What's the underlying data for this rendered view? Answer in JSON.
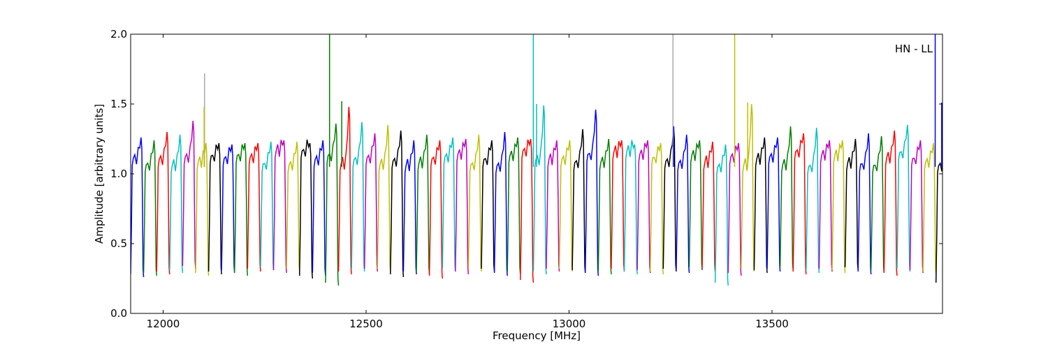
{
  "chart_data": {
    "type": "line",
    "title": "",
    "xlabel": "Frequency [MHz]",
    "ylabel": "Amplitude [arbitrary units]",
    "xlim": [
      11920,
      13920
    ],
    "ylim": [
      0.0,
      2.0
    ],
    "xticks": [
      12000,
      12500,
      13000,
      13500
    ],
    "yticks": [
      0.0,
      0.5,
      1.0,
      1.5,
      2.0
    ],
    "ytick_labels": [
      "0.0",
      "0.5",
      "1.0",
      "1.5",
      "2.0"
    ],
    "grid": false,
    "legend": "none",
    "annotation": "HN - LL",
    "channel": {
      "width": 32,
      "start": 11920,
      "count": 63
    },
    "colors": [
      "#0000ff",
      "#007f00",
      "#ff0000",
      "#00bfbf",
      "#bf00bf",
      "#bfbf00",
      "#000000"
    ],
    "peaks": [
      1.26,
      1.24,
      1.3,
      1.28,
      1.38,
      1.22,
      1.22,
      1.21,
      1.22,
      1.22,
      1.23,
      1.24,
      1.23,
      1.22,
      1.24,
      1.36,
      1.48,
      1.37,
      1.29,
      1.35,
      1.31,
      1.24,
      1.28,
      1.24,
      1.26,
      1.25,
      1.28,
      1.24,
      1.3,
      1.26,
      1.25,
      1.49,
      1.24,
      1.24,
      1.32,
      1.46,
      1.25,
      1.24,
      1.21,
      1.24,
      1.22,
      1.33,
      1.28,
      1.24,
      1.23,
      1.21,
      1.22,
      1.5,
      1.26,
      1.26,
      1.34,
      1.29,
      1.33,
      1.24,
      1.24,
      1.25,
      1.29,
      1.27,
      1.31,
      1.35,
      1.24,
      1.22,
      1.5
    ],
    "troughs": [
      0.26,
      0.27,
      0.28,
      0.29,
      0.32,
      0.27,
      0.28,
      0.29,
      0.27,
      0.3,
      0.31,
      0.29,
      0.3,
      0.25,
      0.27,
      0.2,
      0.28,
      0.3,
      0.3,
      0.3,
      0.26,
      0.28,
      0.28,
      0.25,
      0.3,
      0.28,
      0.3,
      0.3,
      0.27,
      0.28,
      0.22,
      0.28,
      0.3,
      0.3,
      0.29,
      0.27,
      0.28,
      0.3,
      0.28,
      0.29,
      0.28,
      0.3,
      0.29,
      0.31,
      0.3,
      0.2,
      0.27,
      0.3,
      0.29,
      0.3,
      0.31,
      0.28,
      0.29,
      0.3,
      0.29,
      0.31,
      0.28,
      0.29,
      0.27,
      0.3,
      0.29,
      0.28,
      0.2
    ],
    "spikes": [
      {
        "x": 12102,
        "y": 1.72,
        "color": "#aaaaaa"
      },
      {
        "x": 12101,
        "y": 1.48,
        "color": "#bfbf00"
      },
      {
        "x": 12410,
        "y": 2.0,
        "color": "#007f00"
      },
      {
        "x": 12440,
        "y": 1.52,
        "color": "#007f00"
      },
      {
        "x": 12912,
        "y": 2.0,
        "color": "#00bfbf"
      },
      {
        "x": 12920,
        "y": 1.5,
        "color": "#00bfbf"
      },
      {
        "x": 13256,
        "y": 2.0,
        "color": "#aaaaaa"
      },
      {
        "x": 13258,
        "y": 1.34,
        "color": "#0000ff"
      },
      {
        "x": 13408,
        "y": 2.0,
        "color": "#bfbf00"
      },
      {
        "x": 13440,
        "y": 1.51,
        "color": "#bfbf00"
      },
      {
        "x": 13902,
        "y": 2.0,
        "color": "#0000ff"
      },
      {
        "x": 13918,
        "y": 1.51,
        "color": "#0000ff"
      }
    ]
  }
}
